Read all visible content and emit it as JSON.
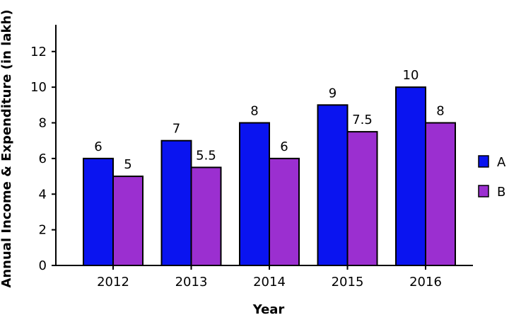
{
  "chart_data": {
    "type": "bar",
    "categories": [
      "2012",
      "2013",
      "2014",
      "2015",
      "2016"
    ],
    "series": [
      {
        "name": "A",
        "values": [
          6,
          7,
          8,
          9,
          10
        ],
        "labels": [
          "6",
          "7",
          "8",
          "9",
          "10"
        ],
        "color": "#0a14f0"
      },
      {
        "name": "B",
        "values": [
          5,
          5.5,
          6,
          7.5,
          8
        ],
        "labels": [
          "5",
          "5.5",
          "6",
          "7.5",
          "8"
        ],
        "color": "#9b2fd0"
      }
    ],
    "xlabel": "Year",
    "ylabel": "Annual Income & Expenditure (in lakh)",
    "ylim": [
      0,
      13.5
    ],
    "yticks": [
      "0",
      "2",
      "4",
      "6",
      "8",
      "10",
      "12"
    ],
    "grid": false,
    "legend": "right"
  }
}
